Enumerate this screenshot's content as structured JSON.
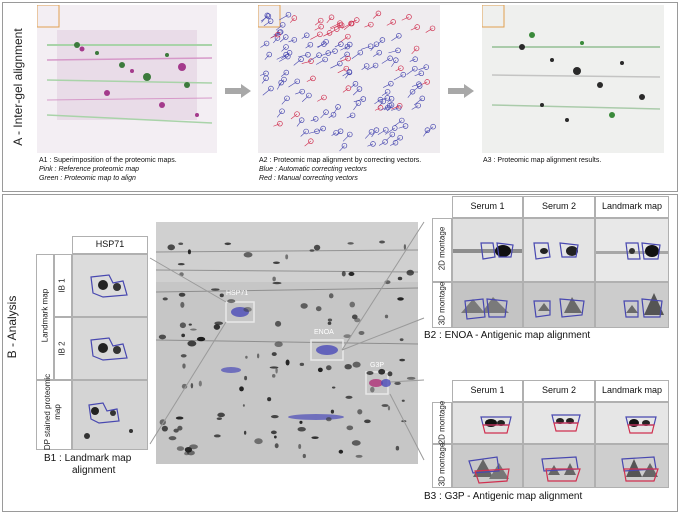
{
  "sectionA": {
    "label": "A - Inter-gel alignment",
    "a1": {
      "title": "A1 : Superimposition of the proteomic maps.",
      "line1": "Pink : Reference proteomic map",
      "line2": "Green : Proteomic map to align"
    },
    "a2": {
      "title": "A2 : Proteomic map alignment by correcting vectors.",
      "line1": "Blue : Automatic correcting vectors",
      "line2": "Red : Manual correcting vectors"
    },
    "a3": {
      "title": "A3 : Proteomic map alignment results."
    }
  },
  "sectionB": {
    "label": "B - Analysis",
    "b1": {
      "header": "HSP71",
      "group_label": "Landmark map",
      "row1": "IB 1",
      "row2": "IB 2",
      "row3": "DP stained proteomic map",
      "caption1": "B1 : Landmark map",
      "caption2": "alignment"
    },
    "center": {
      "hsp": "HSP71",
      "enoa": "ENOA",
      "g3p": "G3P"
    },
    "b2": {
      "col1": "Serum 1",
      "col2": "Serum 2",
      "col3": "Landmark map",
      "row1": "2D montage",
      "row2": "3D montage",
      "caption": "B2 : ENOA  - Antigenic map alignment"
    },
    "b3": {
      "col1": "Serum 1",
      "col2": "Serum 2",
      "col3": "Landmark map",
      "row1": "2D montage",
      "row2": "3D montage",
      "caption": "B3 : G3P - Antigenic map alignment"
    }
  },
  "colors": {
    "pink": "#c0409a",
    "green": "#5cb85c",
    "blue": "#4848b0",
    "red": "#d03050",
    "arrow": "#a0a0a0"
  }
}
